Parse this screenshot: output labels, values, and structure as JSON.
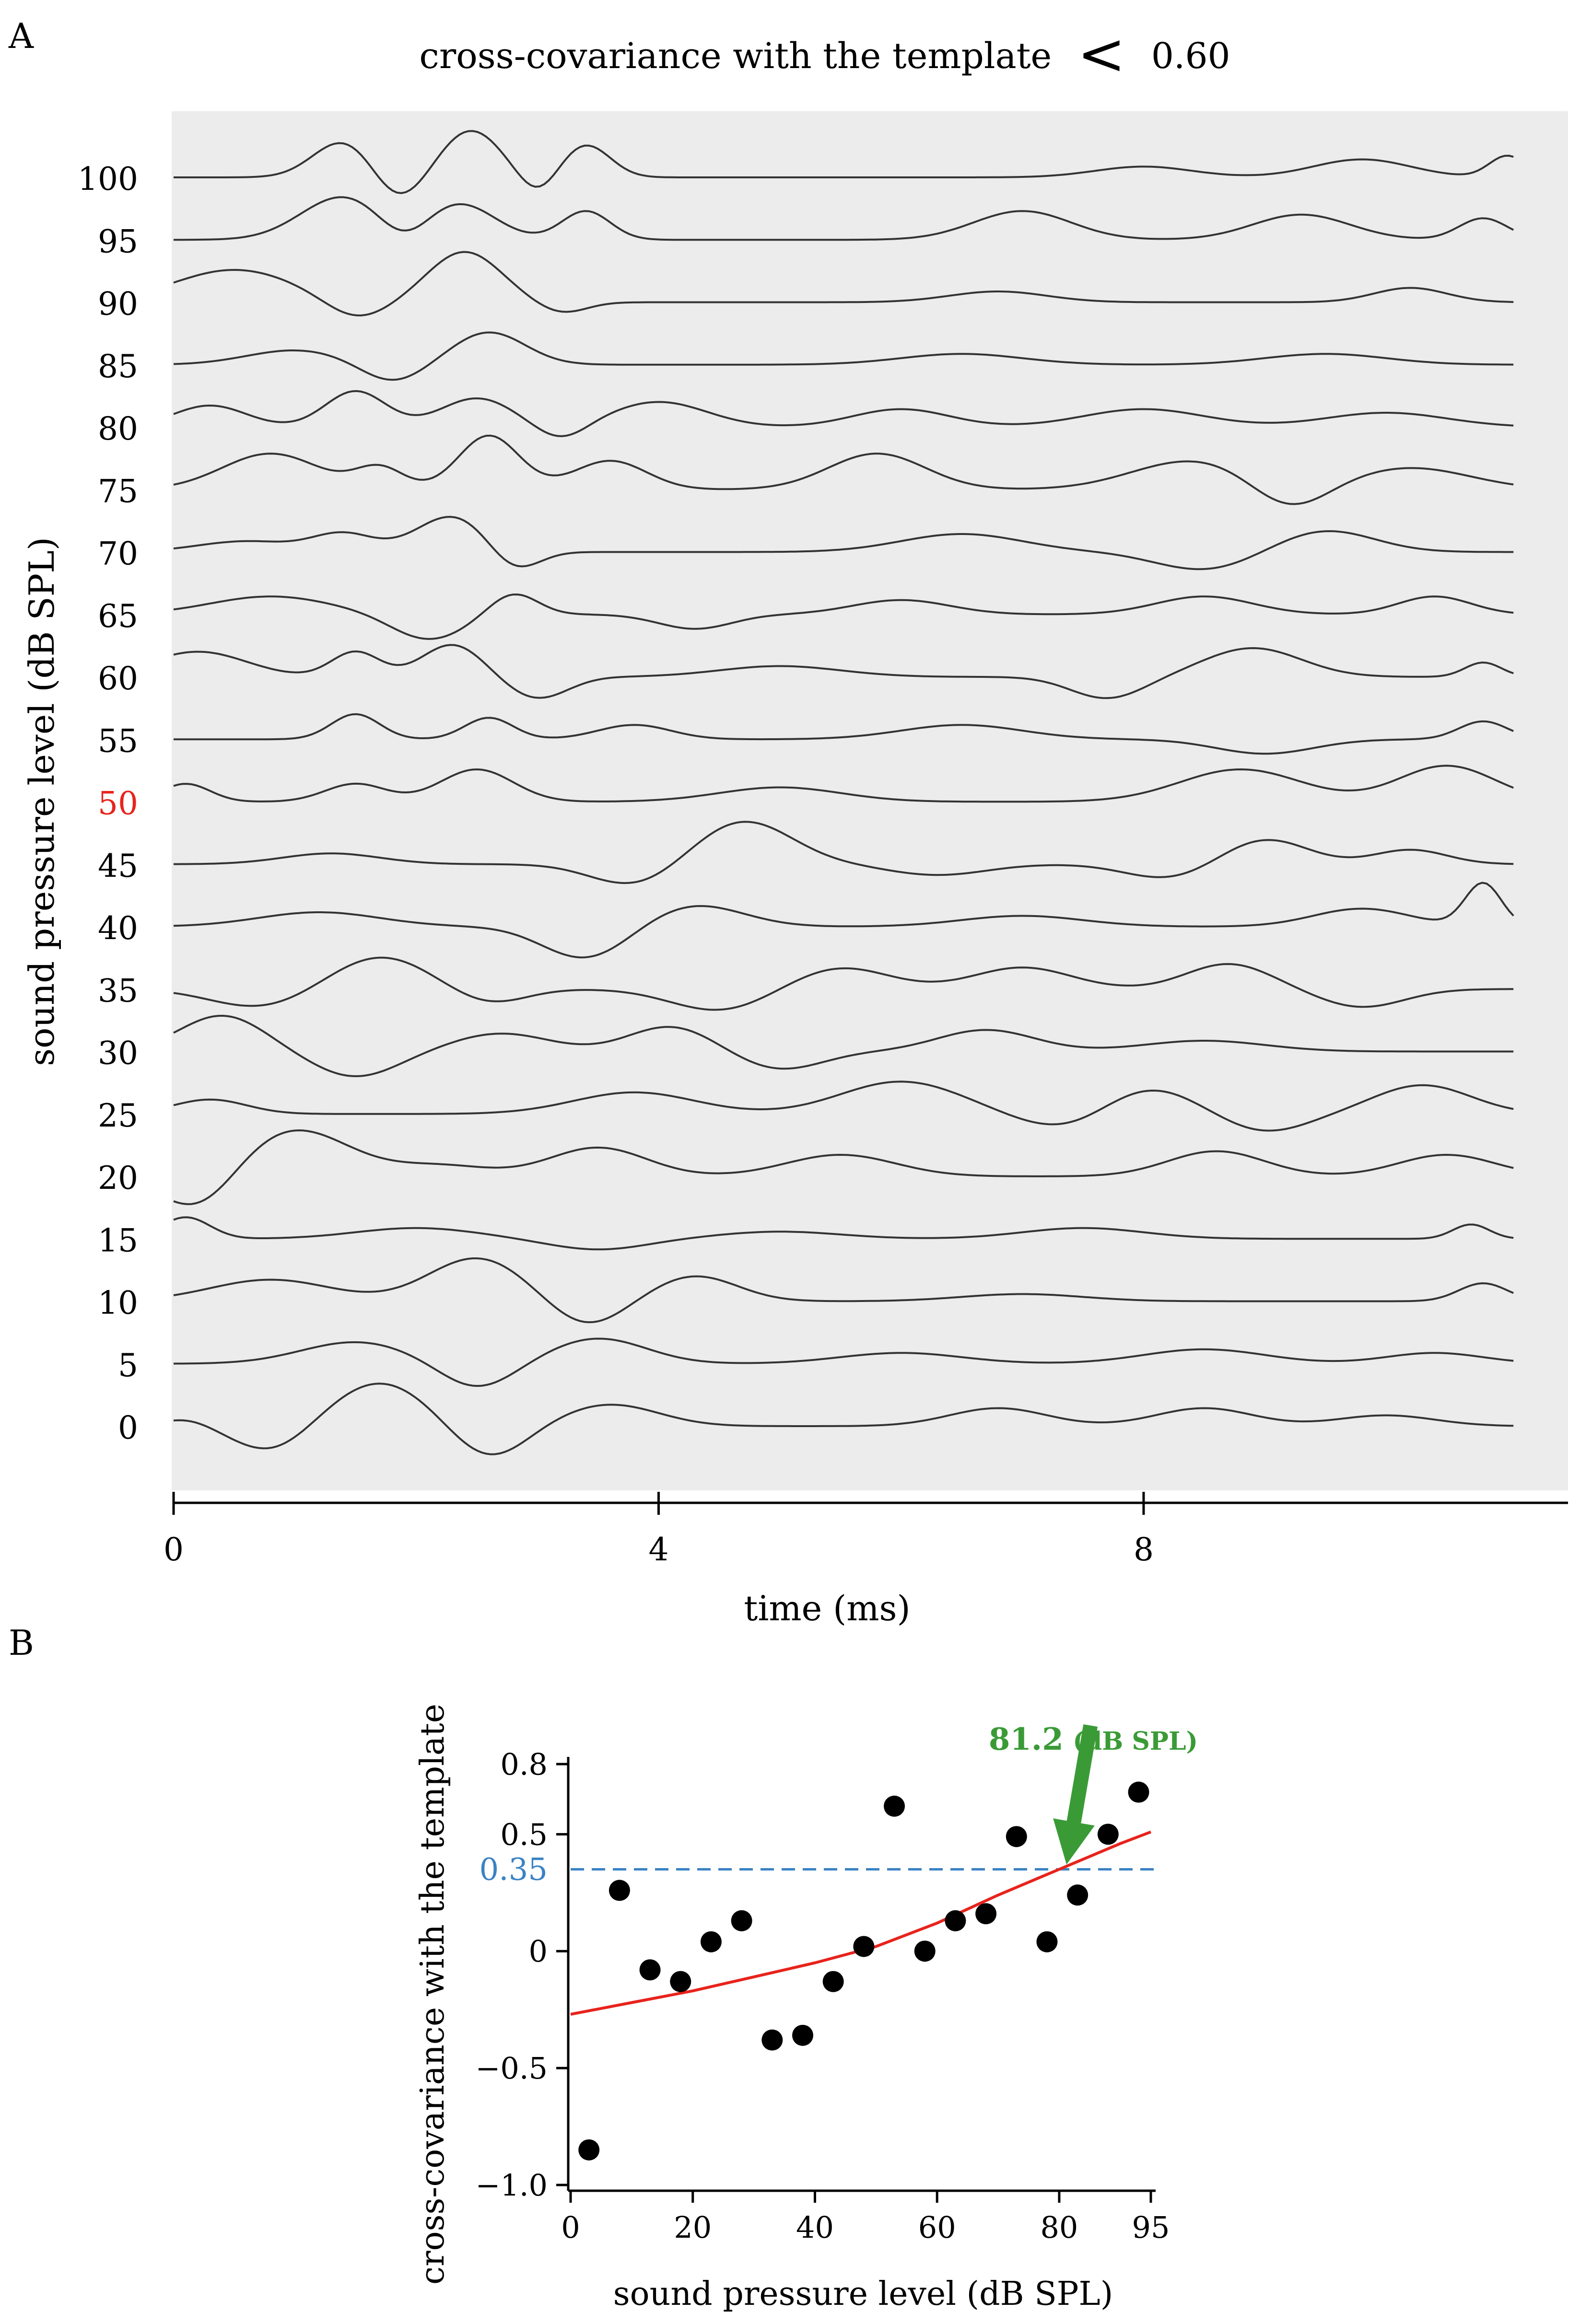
{
  "colors": {
    "panel_bg": "#ececec",
    "trace": "#333333",
    "highlight": "#e8231c",
    "fit": "#e8231c",
    "threshold": "#3b82c4",
    "annotation": "#3a9b36",
    "points": "#000000"
  },
  "panel_a": {
    "letter": "A",
    "title": "cross-covariance with the template",
    "title_symbol": "<",
    "title_threshold": "0.60",
    "xlabel": "time (ms)",
    "ylabel": "sound pressure level (dB SPL)"
  },
  "panel_b": {
    "letter": "B",
    "xlabel": "sound pressure level (dB SPL)",
    "ylabel": "cross-covariance with the template",
    "threshold_label": "0.35",
    "annotation_value": "81.2",
    "annotation_unit": "(dB SPL)"
  },
  "chart_data": [
    {
      "type": "line",
      "xlabel": "time (ms)",
      "ylabel": "sound pressure level (dB SPL)",
      "xlim": [
        0,
        11.5
      ],
      "xticks": [
        0,
        4,
        8
      ],
      "highlight_level": 50,
      "levels": [
        100,
        95,
        90,
        85,
        80,
        75,
        70,
        65,
        60,
        55,
        50,
        45,
        40,
        35,
        30,
        25,
        20,
        15,
        10,
        5,
        0
      ],
      "level_labels": [
        "100",
        "95",
        "90",
        "85",
        "80",
        "75",
        "70",
        "65",
        "60",
        "55",
        "50",
        "45",
        "40",
        "35",
        "30",
        "25",
        "20",
        "15",
        "10",
        "5",
        "0"
      ],
      "series": [
        {
          "level": 100,
          "peaks": [
            [
              1.4,
              1.0,
              0.25
            ],
            [
              2.45,
              1.3,
              0.25
            ],
            [
              1.85,
              -0.7,
              0.2
            ],
            [
              3.0,
              -0.5,
              0.15
            ],
            [
              3.4,
              0.9,
              0.2
            ],
            [
              8.0,
              0.3,
              0.4
            ],
            [
              9.8,
              0.5,
              0.4
            ],
            [
              11.0,
              0.6,
              0.15
            ]
          ]
        },
        {
          "level": 95,
          "peaks": [
            [
              1.4,
              1.2,
              0.35
            ],
            [
              2.35,
              1.0,
              0.3
            ],
            [
              1.9,
              -0.5,
              0.2
            ],
            [
              3.4,
              0.8,
              0.2
            ],
            [
              7.0,
              0.8,
              0.4
            ],
            [
              9.3,
              0.7,
              0.4
            ],
            [
              10.8,
              0.6,
              0.2
            ]
          ]
        },
        {
          "level": 90,
          "peaks": [
            [
              0.5,
              0.9,
              0.5
            ],
            [
              1.5,
              -0.5,
              0.25
            ],
            [
              2.4,
              1.4,
              0.3
            ],
            [
              3.2,
              -0.3,
              0.2
            ],
            [
              6.8,
              0.3,
              0.4
            ],
            [
              10.2,
              0.4,
              0.3
            ]
          ]
        },
        {
          "level": 85,
          "peaks": [
            [
              1.0,
              0.4,
              0.4
            ],
            [
              1.8,
              -0.5,
              0.25
            ],
            [
              2.6,
              0.9,
              0.3
            ],
            [
              6.5,
              0.3,
              0.5
            ],
            [
              9.5,
              0.3,
              0.5
            ]
          ]
        },
        {
          "level": 80,
          "peaks": [
            [
              0.3,
              0.6,
              0.3
            ],
            [
              1.5,
              1.0,
              0.25
            ],
            [
              2.5,
              0.8,
              0.3
            ],
            [
              3.2,
              -0.4,
              0.2
            ],
            [
              4.0,
              0.7,
              0.4
            ],
            [
              6.0,
              0.5,
              0.4
            ],
            [
              8.0,
              0.5,
              0.5
            ],
            [
              10.0,
              0.4,
              0.5
            ]
          ]
        },
        {
          "level": 75,
          "peaks": [
            [
              0.8,
              1.0,
              0.4
            ],
            [
              1.7,
              0.6,
              0.2
            ],
            [
              2.6,
              1.5,
              0.25
            ],
            [
              3.6,
              0.8,
              0.3
            ],
            [
              5.8,
              1.0,
              0.4
            ],
            [
              8.4,
              0.8,
              0.5
            ],
            [
              10.2,
              0.6,
              0.5
            ],
            [
              9.2,
              -0.7,
              0.3
            ]
          ]
        },
        {
          "level": 70,
          "peaks": [
            [
              0.6,
              0.3,
              0.4
            ],
            [
              1.4,
              0.5,
              0.25
            ],
            [
              2.3,
              1.0,
              0.3
            ],
            [
              2.8,
              -0.6,
              0.2
            ],
            [
              6.5,
              0.5,
              0.5
            ],
            [
              8.5,
              -0.5,
              0.4
            ],
            [
              9.5,
              0.6,
              0.4
            ]
          ]
        },
        {
          "level": 65,
          "peaks": [
            [
              0.8,
              0.5,
              0.5
            ],
            [
              2.1,
              -0.7,
              0.3
            ],
            [
              2.8,
              0.6,
              0.2
            ],
            [
              4.3,
              -0.4,
              0.3
            ],
            [
              6.0,
              0.4,
              0.4
            ],
            [
              8.5,
              0.5,
              0.4
            ],
            [
              10.4,
              0.5,
              0.3
            ]
          ]
        },
        {
          "level": 60,
          "peaks": [
            [
              0.2,
              0.7,
              0.4
            ],
            [
              1.5,
              0.7,
              0.2
            ],
            [
              2.3,
              0.9,
              0.25
            ],
            [
              3.0,
              -0.6,
              0.25
            ],
            [
              5.0,
              0.3,
              0.5
            ],
            [
              7.7,
              -0.6,
              0.3
            ],
            [
              8.9,
              0.8,
              0.4
            ],
            [
              10.8,
              0.4,
              0.15
            ]
          ]
        },
        {
          "level": 55,
          "peaks": [
            [
              1.5,
              0.7,
              0.2
            ],
            [
              2.6,
              0.6,
              0.2
            ],
            [
              3.8,
              0.4,
              0.3
            ],
            [
              6.5,
              0.4,
              0.5
            ],
            [
              9.0,
              -0.4,
              0.4
            ],
            [
              10.8,
              0.5,
              0.2
            ]
          ]
        },
        {
          "level": 50,
          "peaks": [
            [
              0.1,
              0.5,
              0.2
            ],
            [
              1.5,
              0.5,
              0.25
            ],
            [
              2.5,
              0.9,
              0.3
            ],
            [
              5.0,
              0.4,
              0.5
            ],
            [
              8.8,
              0.9,
              0.5
            ],
            [
              10.5,
              1.0,
              0.4
            ]
          ]
        },
        {
          "level": 45,
          "peaks": [
            [
              1.3,
              0.3,
              0.4
            ],
            [
              3.8,
              -0.6,
              0.35
            ],
            [
              4.7,
              1.2,
              0.4
            ],
            [
              6.3,
              -0.3,
              0.4
            ],
            [
              8.2,
              -0.4,
              0.35
            ],
            [
              9.0,
              0.7,
              0.35
            ],
            [
              10.2,
              0.4,
              0.3
            ]
          ]
        },
        {
          "level": 40,
          "peaks": [
            [
              1.2,
              0.4,
              0.5
            ],
            [
              3.4,
              -0.9,
              0.35
            ],
            [
              4.3,
              0.6,
              0.4
            ],
            [
              7.0,
              0.3,
              0.5
            ],
            [
              9.8,
              0.5,
              0.4
            ],
            [
              10.8,
              1.2,
              0.15
            ]
          ]
        },
        {
          "level": 35,
          "peaks": [
            [
              0.7,
              -0.5,
              0.4
            ],
            [
              1.7,
              0.9,
              0.4
            ],
            [
              2.6,
              -0.4,
              0.3
            ],
            [
              4.5,
              -0.6,
              0.4
            ],
            [
              5.5,
              0.6,
              0.4
            ],
            [
              7.0,
              0.6,
              0.4
            ],
            [
              8.7,
              0.7,
              0.35
            ],
            [
              9.8,
              -0.5,
              0.35
            ]
          ]
        },
        {
          "level": 30,
          "peaks": [
            [
              0.4,
              1.0,
              0.35
            ],
            [
              1.5,
              -0.7,
              0.35
            ],
            [
              2.7,
              0.5,
              0.4
            ],
            [
              4.1,
              0.7,
              0.35
            ],
            [
              5.0,
              -0.5,
              0.35
            ],
            [
              6.7,
              0.6,
              0.4
            ],
            [
              8.5,
              0.3,
              0.5
            ]
          ]
        },
        {
          "level": 25,
          "peaks": [
            [
              0.3,
              0.4,
              0.3
            ],
            [
              3.8,
              0.6,
              0.5
            ],
            [
              6.0,
              0.9,
              0.5
            ],
            [
              7.4,
              -0.5,
              0.4
            ],
            [
              8.0,
              0.8,
              0.4
            ],
            [
              9.0,
              -0.5,
              0.35
            ],
            [
              10.3,
              0.8,
              0.4
            ]
          ]
        },
        {
          "level": 20,
          "peaks": [
            [
              0.2,
              -1.0,
              0.3
            ],
            [
              1.0,
              1.3,
              0.45
            ],
            [
              2.2,
              0.3,
              0.4
            ],
            [
              3.5,
              0.8,
              0.4
            ],
            [
              5.5,
              0.6,
              0.45
            ],
            [
              8.6,
              0.7,
              0.4
            ],
            [
              10.5,
              0.6,
              0.4
            ]
          ]
        },
        {
          "level": 15,
          "peaks": [
            [
              0.1,
              0.6,
              0.2
            ],
            [
              2.0,
              0.3,
              0.5
            ],
            [
              3.5,
              -0.3,
              0.4
            ],
            [
              5.0,
              0.2,
              0.5
            ],
            [
              7.5,
              0.3,
              0.5
            ],
            [
              10.7,
              0.4,
              0.15
            ]
          ]
        },
        {
          "level": 10,
          "peaks": [
            [
              0.8,
              0.6,
              0.5
            ],
            [
              2.5,
              1.2,
              0.4
            ],
            [
              3.4,
              -0.7,
              0.3
            ],
            [
              4.3,
              0.7,
              0.35
            ],
            [
              7.0,
              0.2,
              0.5
            ],
            [
              10.8,
              0.5,
              0.2
            ]
          ]
        },
        {
          "level": 5,
          "peaks": [
            [
              1.5,
              0.6,
              0.45
            ],
            [
              2.5,
              -0.7,
              0.3
            ],
            [
              3.5,
              0.7,
              0.4
            ],
            [
              6.0,
              0.3,
              0.5
            ],
            [
              8.5,
              0.4,
              0.5
            ],
            [
              10.4,
              0.3,
              0.4
            ]
          ]
        },
        {
          "level": 0,
          "peaks": [
            [
              0.1,
              0.2,
              0.2
            ],
            [
              0.8,
              -0.7,
              0.3
            ],
            [
              1.7,
              1.2,
              0.4
            ],
            [
              2.6,
              -0.9,
              0.3
            ],
            [
              3.6,
              0.6,
              0.4
            ],
            [
              6.8,
              0.5,
              0.4
            ],
            [
              8.5,
              0.5,
              0.4
            ],
            [
              10.0,
              0.3,
              0.4
            ]
          ]
        }
      ]
    },
    {
      "type": "scatter",
      "xlabel": "sound pressure level (dB SPL)",
      "ylabel": "cross-covariance with the template",
      "xlim": [
        0,
        95
      ],
      "ylim": [
        -1.0,
        0.8
      ],
      "xticks": [
        0,
        20,
        40,
        60,
        80,
        95
      ],
      "yticks": [
        0.8,
        0.5,
        0,
        -0.5,
        -1.0
      ],
      "xtick_labels": [
        "0",
        "20",
        "40",
        "60",
        "80",
        "95"
      ],
      "ytick_labels": [
        "0.8",
        "0.5",
        "0",
        "−0.5",
        "−1.0"
      ],
      "threshold_y": 0.35,
      "crossing_x": 81.2,
      "points": [
        [
          3,
          -0.85
        ],
        [
          8,
          0.26
        ],
        [
          13,
          -0.08
        ],
        [
          18,
          -0.13
        ],
        [
          23,
          0.04
        ],
        [
          28,
          0.13
        ],
        [
          33,
          -0.38
        ],
        [
          38,
          -0.36
        ],
        [
          43,
          -0.13
        ],
        [
          48,
          0.02
        ],
        [
          53,
          0.62
        ],
        [
          58,
          0.0
        ],
        [
          63,
          0.13
        ],
        [
          68,
          0.16
        ],
        [
          73,
          0.49
        ],
        [
          78,
          0.04
        ],
        [
          83,
          0.24
        ],
        [
          88,
          0.5
        ],
        [
          93,
          0.68
        ]
      ],
      "fit": [
        [
          0,
          -0.27
        ],
        [
          10,
          -0.22
        ],
        [
          20,
          -0.17
        ],
        [
          30,
          -0.11
        ],
        [
          40,
          -0.05
        ],
        [
          50,
          0.02
        ],
        [
          60,
          0.12
        ],
        [
          70,
          0.24
        ],
        [
          80,
          0.35
        ],
        [
          90,
          0.46
        ],
        [
          95,
          0.51
        ]
      ]
    }
  ]
}
